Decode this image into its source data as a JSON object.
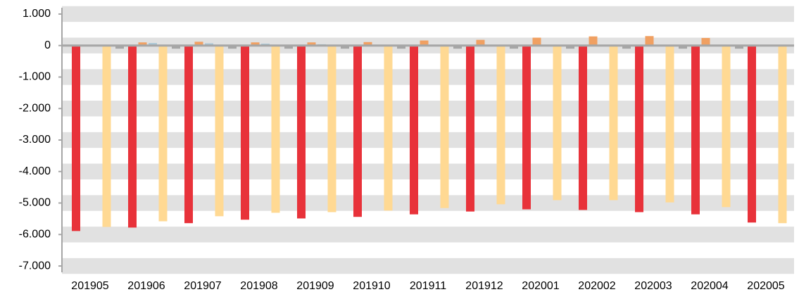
{
  "chart_data": {
    "type": "bar",
    "categories": [
      "201905",
      "201906",
      "201907",
      "201908",
      "201909",
      "201910",
      "201911",
      "201912",
      "202001",
      "202002",
      "202003",
      "202004",
      "202005"
    ],
    "series": [
      {
        "color": "#e8323a",
        "values": [
          -5890,
          -5780,
          -5640,
          -5530,
          -5490,
          -5440,
          -5360,
          -5270,
          -5200,
          -5220,
          -5290,
          -5360,
          -5620
        ]
      },
      {
        "color": "#f0a062",
        "values": [
          null,
          100,
          120,
          100,
          100,
          110,
          160,
          180,
          250,
          290,
          300,
          240,
          null
        ]
      },
      {
        "color": "#a9c6d6",
        "values": [
          null,
          80,
          70,
          60,
          40,
          null,
          null,
          null,
          null,
          null,
          null,
          null,
          null
        ]
      },
      {
        "color": "#ffd993",
        "values": [
          -5760,
          -5580,
          -5420,
          -5310,
          -5290,
          -5240,
          -5160,
          -5040,
          -4910,
          -4910,
          -4980,
          -5130,
          -5640
        ]
      },
      {
        "color": "#a6a6a6",
        "values": [
          -100,
          -100,
          -100,
          -100,
          -100,
          -100,
          -100,
          -100,
          -100,
          -100,
          -100,
          -100,
          null
        ]
      }
    ],
    "ylim": [
      -7200,
      1200
    ],
    "yticks": [
      {
        "value": 1000,
        "label": "1.000"
      },
      0,
      {
        "value": -1000,
        "label": "-1.000"
      },
      {
        "value": -2000,
        "label": "-2.000"
      },
      {
        "value": -3000,
        "label": "-3.000"
      },
      {
        "value": -4000,
        "label": "-4.000"
      },
      {
        "value": -5000,
        "label": "-5.000"
      },
      {
        "value": -6000,
        "label": "-6.000"
      },
      {
        "value": -7000,
        "label": "-7.000"
      }
    ],
    "grid": true
  }
}
